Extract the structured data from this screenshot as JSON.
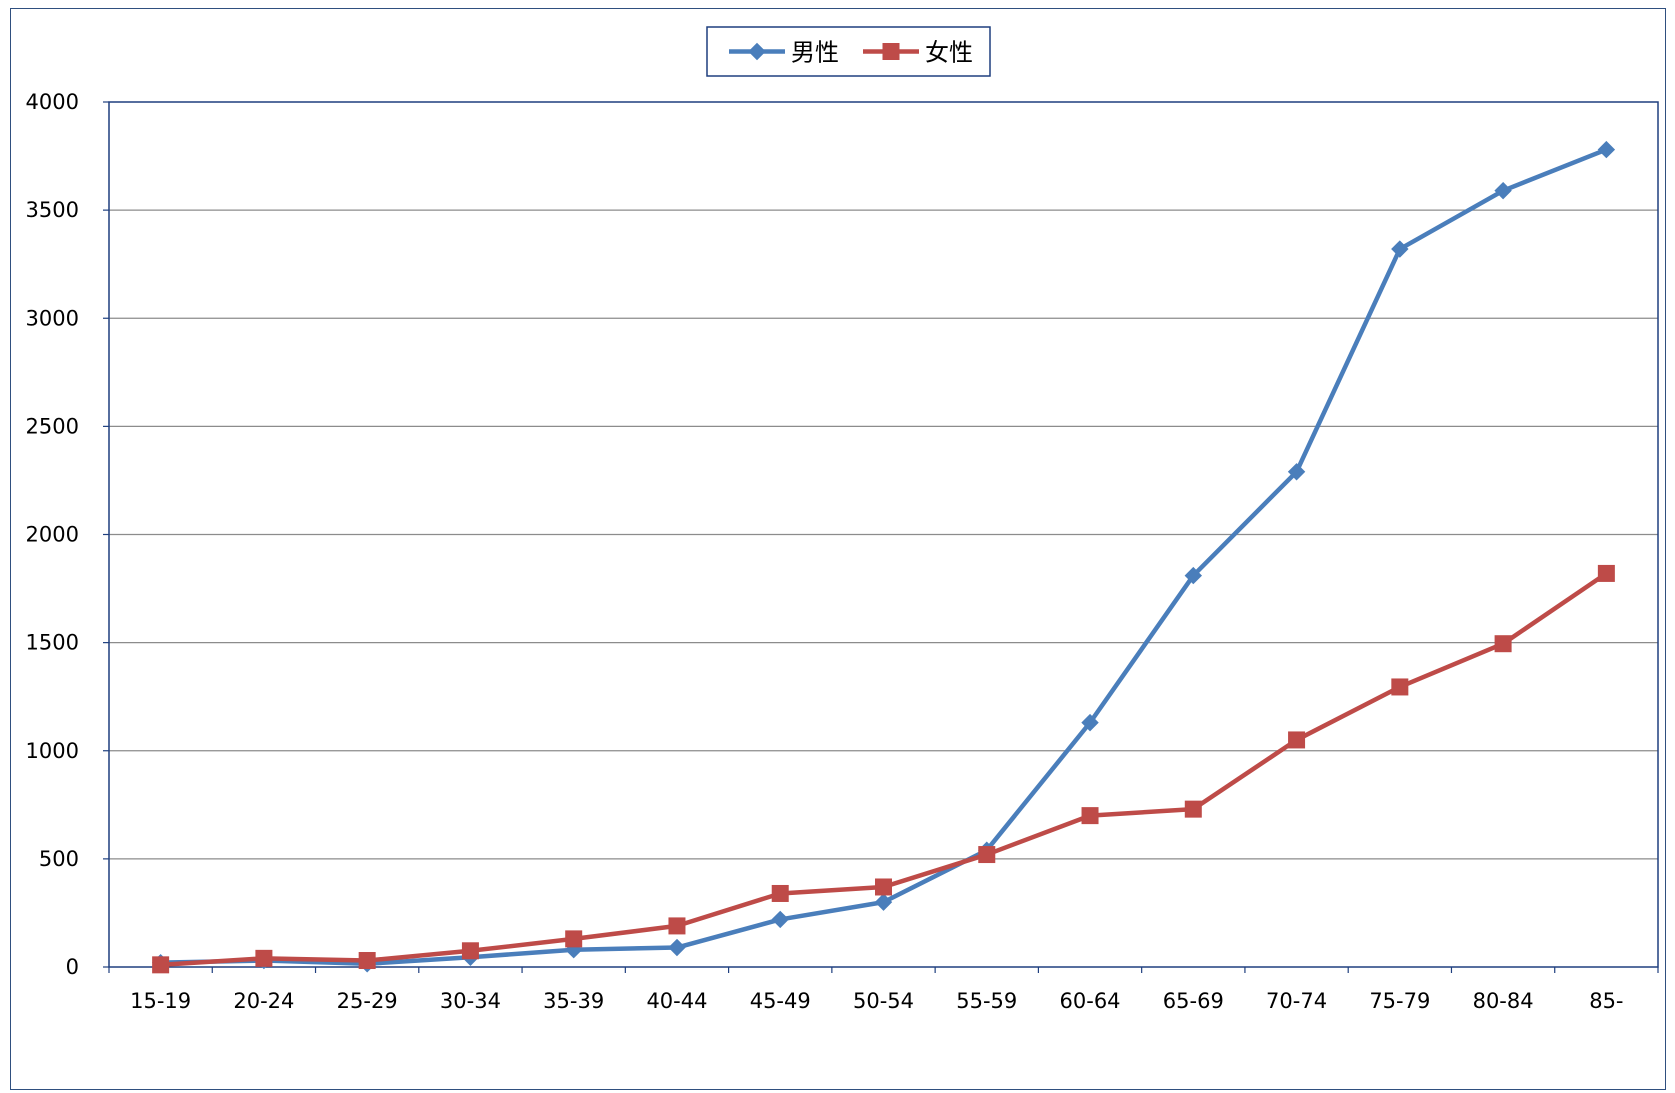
{
  "chart_data": {
    "type": "line",
    "title": "",
    "xlabel": "",
    "ylabel": "",
    "categories": [
      "15-19",
      "20-24",
      "25-29",
      "30-34",
      "35-39",
      "40-44",
      "45-49",
      "50-54",
      "55-59",
      "60-64",
      "65-69",
      "70-74",
      "75-79",
      "80-84",
      "85-"
    ],
    "series": [
      {
        "name": "男性",
        "color": "#4a7ebb",
        "marker": "diamond",
        "values": [
          20,
          30,
          15,
          45,
          80,
          90,
          220,
          300,
          540,
          1130,
          1810,
          2290,
          3320,
          3590,
          3780
        ]
      },
      {
        "name": "女性",
        "color": "#be4b48",
        "marker": "square",
        "values": [
          10,
          40,
          30,
          75,
          130,
          190,
          340,
          370,
          520,
          700,
          730,
          1050,
          1295,
          1495,
          1820
        ]
      }
    ],
    "ylim": [
      0,
      4000
    ],
    "yticks": [
      0,
      500,
      1000,
      1500,
      2000,
      2500,
      3000,
      3500,
      4000
    ],
    "grid": true,
    "legend_position": "top-center"
  }
}
